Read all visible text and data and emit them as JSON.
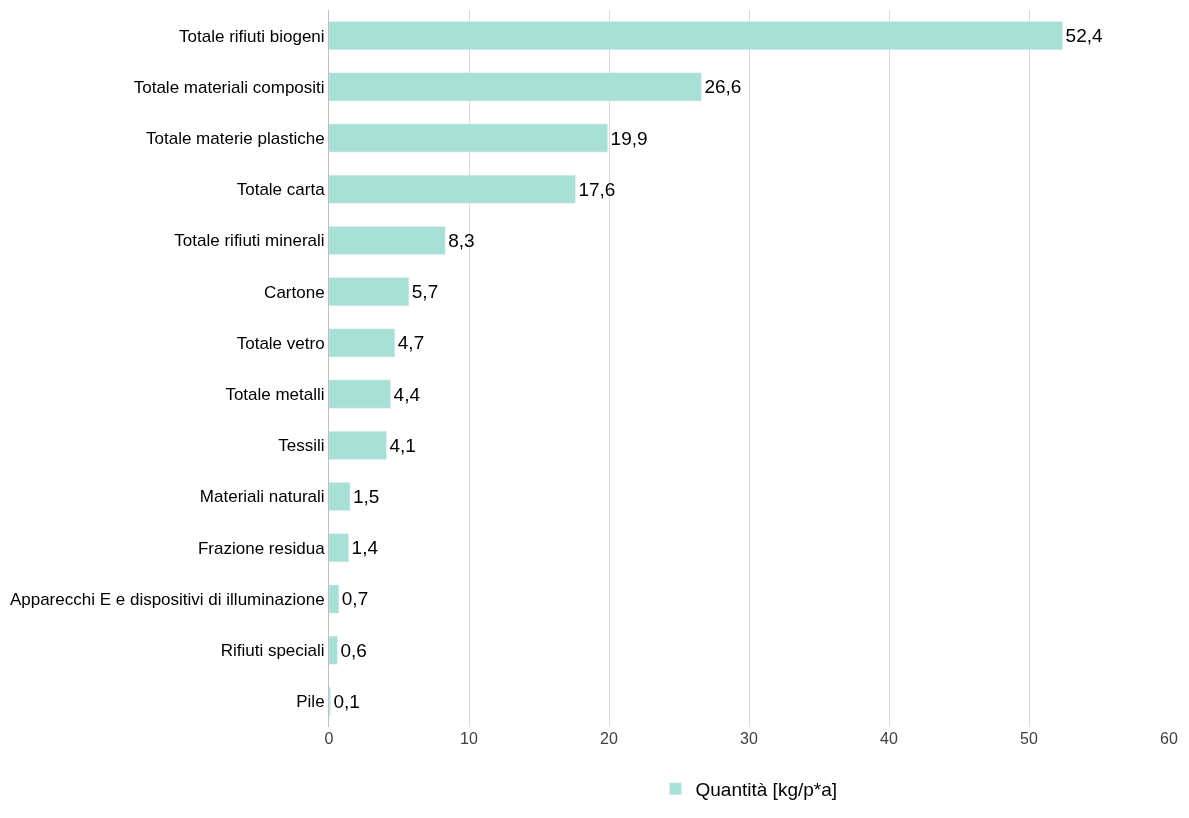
{
  "chart_data": {
    "type": "bar",
    "orientation": "horizontal",
    "categories": [
      "Totale rifiuti biogeni",
      "Totale materiali compositi",
      "Totale materie plastiche",
      "Totale carta",
      "Totale rifiuti minerali",
      "Cartone",
      "Totale vetro",
      "Totale metalli",
      "Tessili",
      "Materiali naturali",
      "Frazione residua",
      "Apparecchi E e dispositivi di illuminazione",
      "Rifiuti speciali",
      "Pile"
    ],
    "series": [
      {
        "name": "Quantità [kg/p*a]",
        "color": "#a8e0d6",
        "values": [
          52.4,
          26.6,
          19.9,
          17.6,
          8.3,
          5.7,
          4.7,
          4.4,
          4.1,
          1.5,
          1.4,
          0.7,
          0.6,
          0.1
        ],
        "value_labels": [
          "52,4",
          "26,6",
          "19,9",
          "17,6",
          "8,3",
          "5,7",
          "4,7",
          "4,4",
          "4,1",
          "1,5",
          "1,4",
          "0,7",
          "0,6",
          "0,1"
        ]
      }
    ],
    "xlim": [
      0,
      60
    ],
    "xticks": [
      0,
      10,
      20,
      30,
      40,
      50,
      60
    ],
    "grid": "x",
    "legend": "bottom"
  }
}
